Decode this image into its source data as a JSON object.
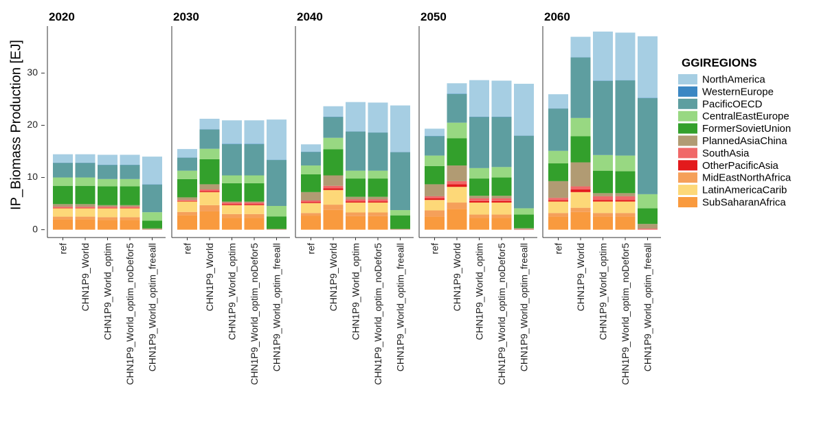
{
  "chart_data": {
    "type": "bar",
    "stacked": true,
    "facets": [
      "2020",
      "2030",
      "2040",
      "2050",
      "2060"
    ],
    "categories": [
      "ref",
      "CHN1P9_World",
      "CHN1P9_World_optim",
      "CHN1P9_World_optim_noDefor5",
      "CHN1P9_World_optim_freeall"
    ],
    "ylabel": "IP_Biomass Production [EJ]",
    "ylim": [
      -1.5,
      39
    ],
    "yticks": [
      0,
      10,
      20,
      30
    ],
    "grid": false,
    "legend_title": "GGIREGIONS",
    "legend_position": "right",
    "stack_order": [
      "SubSaharanAfrica",
      "MidEastNorthAfrica",
      "LatinAmericaCarib",
      "OtherPacificAsia",
      "SouthAsia",
      "PlannedAsiaChina",
      "FormerSovietUnion",
      "CentralEastEurope",
      "PacificOECD",
      "WesternEurope",
      "NorthAmerica"
    ],
    "series": [
      {
        "name": "NorthAmerica",
        "color": "#a6cee3"
      },
      {
        "name": "WesternEurope",
        "color": "#3b87c3"
      },
      {
        "name": "PacificOECD",
        "color": "#5e9ea0"
      },
      {
        "name": "CentralEastEurope",
        "color": "#98d882"
      },
      {
        "name": "FormerSovietUnion",
        "color": "#33a02c"
      },
      {
        "name": "PlannedAsiaChina",
        "color": "#b19b73"
      },
      {
        "name": "SouthAsia",
        "color": "#f06868"
      },
      {
        "name": "OtherPacificAsia",
        "color": "#e31a1c"
      },
      {
        "name": "MidEastNorthAfrica",
        "color": "#f5a05a"
      },
      {
        "name": "LatinAmericaCarib",
        "color": "#fdd878"
      },
      {
        "name": "SubSaharanAfrica",
        "color": "#f99a3e"
      }
    ],
    "values": {
      "2020": [
        [
          1.6,
          0.05,
          2.8,
          1.6,
          3.5,
          0.5,
          0.2,
          0.1,
          0.5,
          1.6,
          2.0
        ],
        [
          1.6,
          0.05,
          2.8,
          1.6,
          3.5,
          0.5,
          0.2,
          0.1,
          0.5,
          1.6,
          2.0
        ],
        [
          1.9,
          0.05,
          2.7,
          1.4,
          3.6,
          0.3,
          0.2,
          0.1,
          0.5,
          1.7,
          1.9
        ],
        [
          1.9,
          0.05,
          2.7,
          1.4,
          3.6,
          0.3,
          0.2,
          0.1,
          0.5,
          1.7,
          1.9
        ],
        [
          5.3,
          0.05,
          5.3,
          1.6,
          1.5,
          0.2,
          0.05,
          0.0,
          0.0,
          0.0,
          0.0
        ]
      ],
      "2030": [
        [
          1.6,
          0.05,
          2.5,
          1.6,
          3.5,
          0.5,
          0.2,
          0.1,
          0.6,
          2.0,
          2.8
        ],
        [
          2.0,
          0.05,
          3.7,
          2.0,
          4.8,
          1.0,
          0.3,
          0.2,
          1.2,
          2.5,
          3.5
        ],
        [
          4.5,
          0.05,
          6.0,
          1.5,
          3.5,
          0.2,
          0.3,
          0.2,
          0.7,
          1.7,
          2.3
        ],
        [
          4.5,
          0.05,
          6.0,
          1.5,
          3.5,
          0.2,
          0.3,
          0.2,
          0.7,
          1.7,
          2.3
        ],
        [
          7.7,
          0.05,
          8.8,
          2.0,
          2.4,
          0.1,
          0.05,
          0.0,
          0.0,
          0.0,
          0.0
        ]
      ],
      "2040": [
        [
          1.4,
          0.05,
          2.6,
          1.7,
          3.4,
          1.6,
          0.3,
          0.2,
          0.5,
          1.9,
          2.7
        ],
        [
          2.0,
          0.05,
          4.0,
          2.2,
          5.0,
          2.0,
          0.5,
          0.3,
          1.0,
          2.8,
          3.8
        ],
        [
          5.6,
          0.05,
          7.5,
          1.5,
          3.5,
          0.5,
          0.4,
          0.2,
          0.7,
          1.9,
          2.6
        ],
        [
          5.7,
          0.05,
          7.3,
          1.5,
          3.5,
          0.5,
          0.4,
          0.2,
          0.7,
          1.9,
          2.6
        ],
        [
          8.9,
          0.05,
          11.1,
          1.0,
          2.6,
          0.1,
          0.05,
          0.0,
          0.0,
          0.0,
          0.0
        ]
      ],
      "2050": [
        [
          1.4,
          0.05,
          3.7,
          2.0,
          3.5,
          2.3,
          0.4,
          0.3,
          1.2,
          2.0,
          2.5
        ],
        [
          2.0,
          0.05,
          5.5,
          3.0,
          5.2,
          3.0,
          0.6,
          0.5,
          1.2,
          3.0,
          4.0
        ],
        [
          7.0,
          0.05,
          9.8,
          2.0,
          3.3,
          0.5,
          0.5,
          0.3,
          0.6,
          2.3,
          2.3
        ],
        [
          6.9,
          0.05,
          9.6,
          2.0,
          3.5,
          0.5,
          0.5,
          0.3,
          0.6,
          2.3,
          2.3
        ],
        [
          9.9,
          0.05,
          13.9,
          1.2,
          2.6,
          0.2,
          0.1,
          0.0,
          0.0,
          0.0,
          0.0
        ]
      ],
      "2060": [
        [
          2.7,
          0.05,
          8.1,
          2.4,
          3.4,
          3.2,
          0.5,
          0.2,
          0.7,
          2.2,
          2.5
        ],
        [
          3.9,
          0.05,
          11.6,
          3.5,
          5.0,
          4.6,
          0.6,
          0.5,
          0.8,
          3.0,
          3.4
        ],
        [
          9.4,
          0.05,
          14.2,
          3.0,
          4.3,
          0.6,
          0.7,
          0.3,
          0.7,
          2.2,
          2.5
        ],
        [
          9.1,
          0.05,
          14.4,
          3.0,
          4.2,
          0.6,
          0.7,
          0.3,
          0.7,
          2.2,
          2.5
        ],
        [
          11.8,
          0.05,
          18.4,
          2.7,
          3.0,
          0.9,
          0.2,
          0.0,
          0.0,
          0.0,
          0.0
        ]
      ]
    }
  }
}
